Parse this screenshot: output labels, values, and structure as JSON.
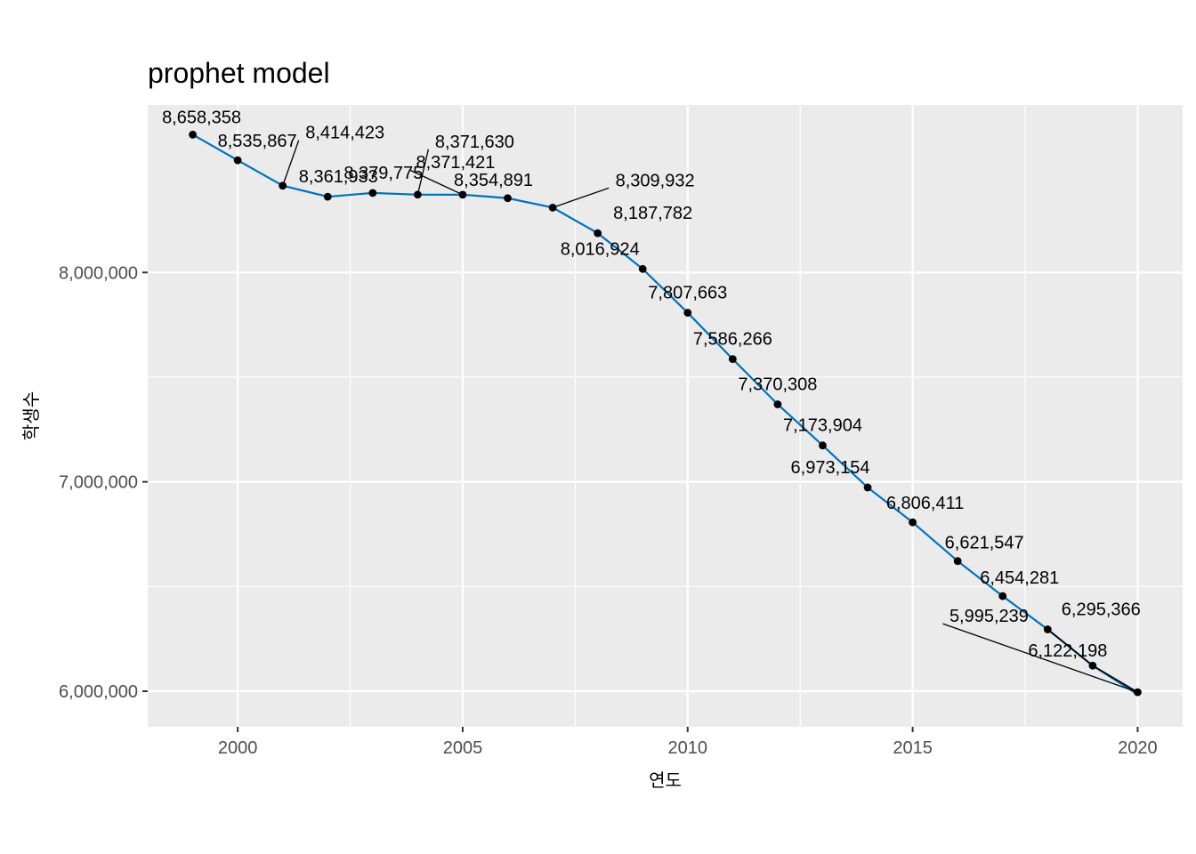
{
  "chart_data": {
    "type": "line",
    "title": "prophet model",
    "xlabel": "연도",
    "ylabel": "학생수",
    "xlim": [
      1998.0,
      2021.0
    ],
    "ylim": [
      5830000,
      8800000
    ],
    "x_ticks": [
      2000,
      2005,
      2010,
      2015,
      2020
    ],
    "y_ticks": [
      6000000,
      7000000,
      8000000
    ],
    "y_tick_labels": [
      "6,000,000",
      "7,000,000",
      "8,000,000"
    ],
    "grid": true,
    "colors": {
      "panel": "#ebebeb",
      "grid": "#ffffff",
      "line": "#0072bd",
      "point": "#000000",
      "tick": "#4d4d4d"
    },
    "series": [
      {
        "x": [
          1999,
          2000,
          2001,
          2002,
          2003,
          2004,
          2005,
          2006,
          2007,
          2008,
          2009,
          2010,
          2011,
          2012,
          2013,
          2014,
          2015,
          2016,
          2017,
          2018,
          2019,
          2020
        ],
        "values": [
          8658358,
          8535867,
          8414423,
          8361933,
          8379775,
          8371630,
          8371421,
          8354891,
          8309932,
          8187782,
          8016924,
          7807663,
          7586266,
          7370308,
          7173904,
          6973154,
          6806411,
          6621547,
          6454281,
          6295366,
          6122198,
          5995239
        ],
        "labels": [
          "8,658,358",
          "8,535,867",
          "8,414,423",
          "8,361,933",
          "8,379,775",
          "8,371,630",
          "8,371,421",
          "8,354,891",
          "8,309,932",
          "8,187,782",
          "8,016,924",
          "7,807,663",
          "7,586,266",
          "7,370,308",
          "7,173,904",
          "6,973,154",
          "6,806,411",
          "6,621,547",
          "6,454,281",
          "6,295,366",
          "6,122,198",
          "5,995,239"
        ]
      },
      {
        "x": [
          1999,
          2000,
          2001,
          2002,
          2003,
          2004,
          2005,
          2006,
          2007,
          2008,
          2009,
          2010,
          2011,
          2012,
          2013,
          2014,
          2015,
          2016,
          2017,
          2018,
          2019,
          2020
        ],
        "values": [
          8658358,
          8535867,
          8414423,
          8361933,
          8379775,
          8371630,
          8371421,
          8354891,
          8309932,
          8187782,
          8016924,
          7807663,
          7586266,
          7370308,
          7173904,
          6973154,
          6806411,
          6621547,
          6454281,
          6295366,
          6122198,
          5985000
        ]
      }
    ]
  }
}
